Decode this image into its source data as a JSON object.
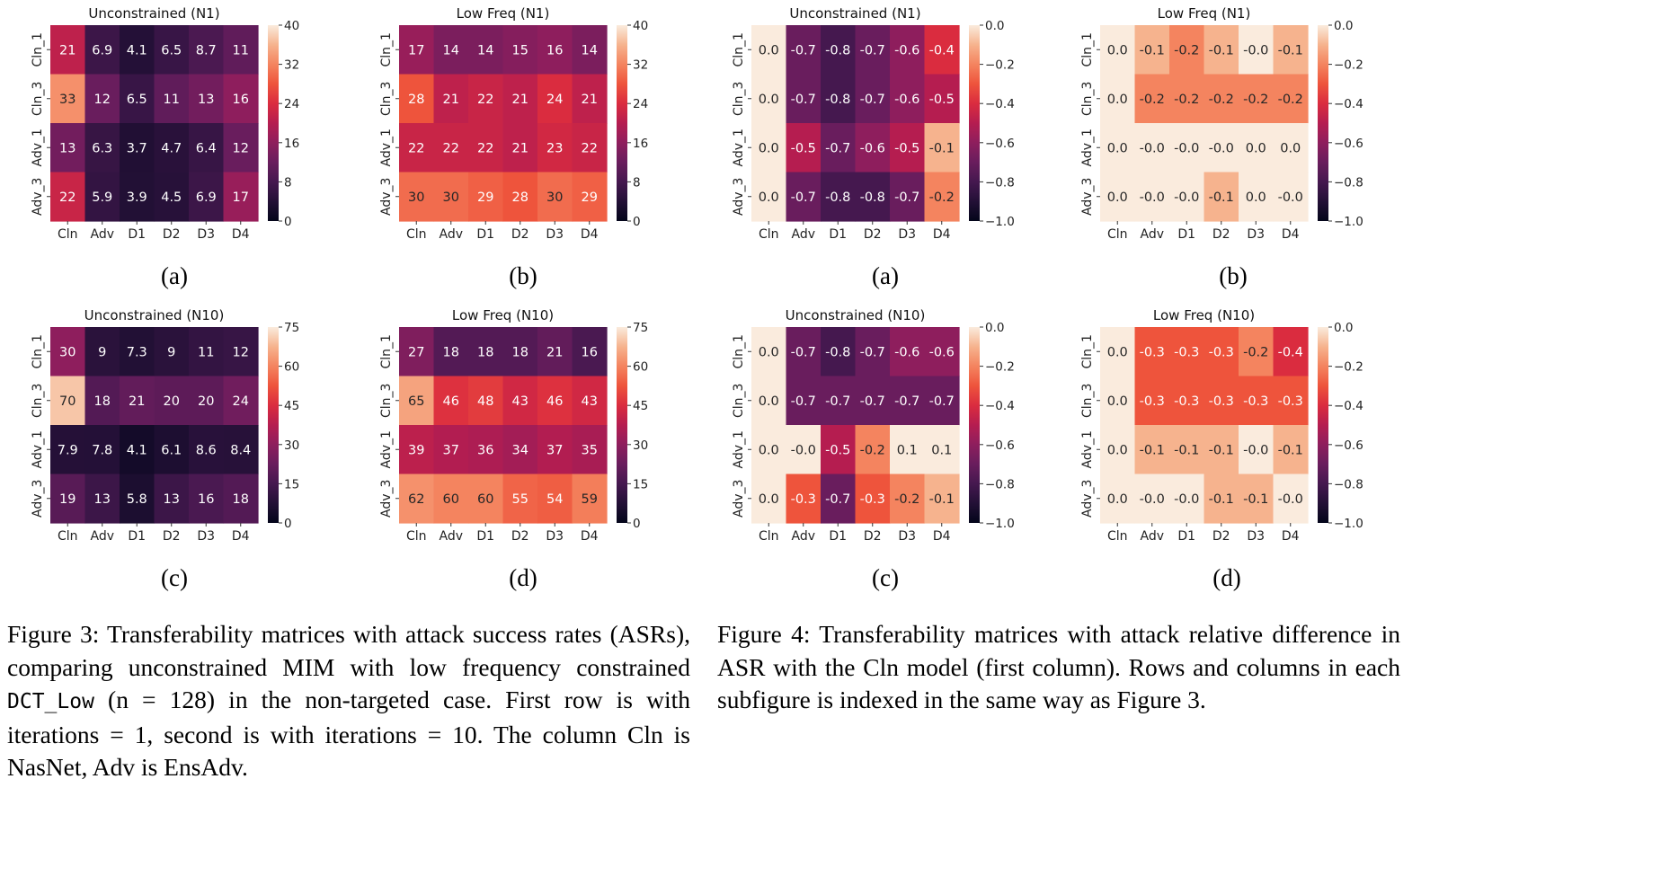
{
  "chart_data": [
    {
      "type": "heatmap",
      "title": "Unconstrained (N1)",
      "xlabels": [
        "Cln",
        "Adv",
        "D1",
        "D2",
        "D3",
        "D4"
      ],
      "ylabels": [
        "Cln_1",
        "Cln_3",
        "Adv_1",
        "Adv_3"
      ],
      "values": [
        [
          21,
          6.9,
          4.1,
          6.5,
          8.7,
          11
        ],
        [
          33,
          12,
          6.5,
          11,
          13,
          16
        ],
        [
          13,
          6.3,
          3.7,
          4.7,
          6.4,
          12
        ],
        [
          22,
          5.9,
          3.9,
          4.5,
          6.9,
          17
        ]
      ],
      "vmin": 0,
      "vmax": 40,
      "colorbar_ticks": [
        "0",
        "8",
        "16",
        "24",
        "32",
        "40"
      ],
      "colormap": "rocket",
      "sublabel": "(a)"
    },
    {
      "type": "heatmap",
      "title": "Low Freq (N1)",
      "xlabels": [
        "Cln",
        "Adv",
        "D1",
        "D2",
        "D3",
        "D4"
      ],
      "ylabels": [
        "Cln_1",
        "Cln_3",
        "Adv_1",
        "Adv_3"
      ],
      "values": [
        [
          17,
          14,
          14,
          15,
          16,
          14
        ],
        [
          28,
          21,
          22,
          21,
          24,
          21
        ],
        [
          22,
          22,
          22,
          21,
          23,
          22
        ],
        [
          30,
          30,
          29,
          28,
          30,
          29
        ]
      ],
      "vmin": 0,
      "vmax": 40,
      "colorbar_ticks": [
        "0",
        "8",
        "16",
        "24",
        "32",
        "40"
      ],
      "colormap": "rocket",
      "sublabel": "(b)"
    },
    {
      "type": "heatmap",
      "title": "Unconstrained (N1)",
      "xlabels": [
        "Cln",
        "Adv",
        "D1",
        "D2",
        "D3",
        "D4"
      ],
      "ylabels": [
        "Cln_1",
        "Cln_3",
        "Adv_1",
        "Adv_3"
      ],
      "values": [
        [
          0.0,
          -0.7,
          -0.8,
          -0.7,
          -0.6,
          -0.4
        ],
        [
          0.0,
          -0.7,
          -0.8,
          -0.7,
          -0.6,
          -0.5
        ],
        [
          0.0,
          -0.5,
          -0.7,
          -0.6,
          -0.5,
          -0.1
        ],
        [
          0.0,
          -0.7,
          -0.8,
          -0.8,
          -0.7,
          -0.2
        ]
      ],
      "display": [
        [
          "0.0",
          "-0.7",
          "-0.8",
          "-0.7",
          "-0.6",
          "-0.4"
        ],
        [
          "0.0",
          "-0.7",
          "-0.8",
          "-0.7",
          "-0.6",
          "-0.5"
        ],
        [
          "0.0",
          "-0.5",
          "-0.7",
          "-0.6",
          "-0.5",
          "-0.1"
        ],
        [
          "0.0",
          "-0.7",
          "-0.8",
          "-0.8",
          "-0.7",
          "-0.2"
        ]
      ],
      "vmin": -1.0,
      "vmax": 0.0,
      "colorbar_ticks": [
        "−1.0",
        "−0.8",
        "−0.6",
        "−0.4",
        "−0.2",
        "0.0"
      ],
      "colormap": "rocket",
      "sublabel": "(a)"
    },
    {
      "type": "heatmap",
      "title": "Low Freq (N1)",
      "xlabels": [
        "Cln",
        "Adv",
        "D1",
        "D2",
        "D3",
        "D4"
      ],
      "ylabels": [
        "Cln_1",
        "Cln_3",
        "Adv_1",
        "Adv_3"
      ],
      "values": [
        [
          0.0,
          -0.1,
          -0.2,
          -0.1,
          -0.0,
          -0.1
        ],
        [
          0.0,
          -0.2,
          -0.2,
          -0.2,
          -0.2,
          -0.2
        ],
        [
          0.0,
          -0.0,
          -0.0,
          -0.0,
          0.0,
          0.0
        ],
        [
          0.0,
          -0.0,
          -0.0,
          -0.1,
          0.0,
          -0.0
        ]
      ],
      "display": [
        [
          "0.0",
          "-0.1",
          "-0.2",
          "-0.1",
          "-0.0",
          "-0.1"
        ],
        [
          "0.0",
          "-0.2",
          "-0.2",
          "-0.2",
          "-0.2",
          "-0.2"
        ],
        [
          "0.0",
          "-0.0",
          "-0.0",
          "-0.0",
          "0.0",
          "0.0"
        ],
        [
          "0.0",
          "-0.0",
          "-0.0",
          "-0.1",
          "0.0",
          "-0.0"
        ]
      ],
      "vmin": -1.0,
      "vmax": 0.0,
      "colorbar_ticks": [
        "−1.0",
        "−0.8",
        "−0.6",
        "−0.4",
        "−0.2",
        "0.0"
      ],
      "colormap": "rocket",
      "sublabel": "(b)"
    },
    {
      "type": "heatmap",
      "title": "Unconstrained (N10)",
      "xlabels": [
        "Cln",
        "Adv",
        "D1",
        "D2",
        "D3",
        "D4"
      ],
      "ylabels": [
        "Cln_1",
        "Cln_3",
        "Adv_1",
        "Adv_3"
      ],
      "values": [
        [
          30,
          9,
          7.3,
          9,
          11,
          12
        ],
        [
          70,
          18,
          21,
          20,
          20,
          24
        ],
        [
          7.9,
          7.8,
          4.1,
          6.1,
          8.6,
          8.4
        ],
        [
          19,
          13,
          5.8,
          13,
          16,
          18
        ]
      ],
      "vmin": 0,
      "vmax": 75,
      "colorbar_ticks": [
        "0",
        "15",
        "30",
        "45",
        "60",
        "75"
      ],
      "colormap": "rocket",
      "sublabel": "(c)"
    },
    {
      "type": "heatmap",
      "title": "Low Freq (N10)",
      "xlabels": [
        "Cln",
        "Adv",
        "D1",
        "D2",
        "D3",
        "D4"
      ],
      "ylabels": [
        "Cln_1",
        "Cln_3",
        "Adv_1",
        "Adv_3"
      ],
      "values": [
        [
          27,
          18,
          18,
          18,
          21,
          16
        ],
        [
          65,
          46,
          48,
          43,
          46,
          43
        ],
        [
          39,
          37,
          36,
          34,
          37,
          35
        ],
        [
          62,
          60,
          60,
          55,
          54,
          59
        ]
      ],
      "vmin": 0,
      "vmax": 75,
      "colorbar_ticks": [
        "0",
        "15",
        "30",
        "45",
        "60",
        "75"
      ],
      "colormap": "rocket",
      "sublabel": "(d)"
    },
    {
      "type": "heatmap",
      "title": "Unconstrained (N10)",
      "xlabels": [
        "Cln",
        "Adv",
        "D1",
        "D2",
        "D3",
        "D4"
      ],
      "ylabels": [
        "Cln_1",
        "Cln_3",
        "Adv_1",
        "Adv_3"
      ],
      "values": [
        [
          0.0,
          -0.7,
          -0.8,
          -0.7,
          -0.6,
          -0.6
        ],
        [
          0.0,
          -0.7,
          -0.7,
          -0.7,
          -0.7,
          -0.7
        ],
        [
          0.0,
          -0.0,
          -0.5,
          -0.2,
          0.1,
          0.1
        ],
        [
          0.0,
          -0.3,
          -0.7,
          -0.3,
          -0.2,
          -0.1
        ]
      ],
      "display": [
        [
          "0.0",
          "-0.7",
          "-0.8",
          "-0.7",
          "-0.6",
          "-0.6"
        ],
        [
          "0.0",
          "-0.7",
          "-0.7",
          "-0.7",
          "-0.7",
          "-0.7"
        ],
        [
          "0.0",
          "-0.0",
          "-0.5",
          "-0.2",
          "0.1",
          "0.1"
        ],
        [
          "0.0",
          "-0.3",
          "-0.7",
          "-0.3",
          "-0.2",
          "-0.1"
        ]
      ],
      "vmin": -1.0,
      "vmax": 0.0,
      "colorbar_ticks": [
        "−1.0",
        "−0.8",
        "−0.6",
        "−0.4",
        "−0.2",
        "0.0"
      ],
      "colormap": "rocket",
      "sublabel": "(c)"
    },
    {
      "type": "heatmap",
      "title": "Low Freq (N10)",
      "xlabels": [
        "Cln",
        "Adv",
        "D1",
        "D2",
        "D3",
        "D4"
      ],
      "ylabels": [
        "Cln_1",
        "Cln_3",
        "Adv_1",
        "Adv_3"
      ],
      "values": [
        [
          0.0,
          -0.3,
          -0.3,
          -0.3,
          -0.2,
          -0.4
        ],
        [
          0.0,
          -0.3,
          -0.3,
          -0.3,
          -0.3,
          -0.3
        ],
        [
          0.0,
          -0.1,
          -0.1,
          -0.1,
          -0.0,
          -0.1
        ],
        [
          0.0,
          -0.0,
          -0.0,
          -0.1,
          -0.1,
          -0.0
        ]
      ],
      "display": [
        [
          "0.0",
          "-0.3",
          "-0.3",
          "-0.3",
          "-0.2",
          "-0.4"
        ],
        [
          "0.0",
          "-0.3",
          "-0.3",
          "-0.3",
          "-0.3",
          "-0.3"
        ],
        [
          "0.0",
          "-0.1",
          "-0.1",
          "-0.1",
          "-0.0",
          "-0.1"
        ],
        [
          "0.0",
          "-0.0",
          "-0.0",
          "-0.1",
          "-0.1",
          "-0.0"
        ]
      ],
      "vmin": -1.0,
      "vmax": 0.0,
      "colorbar_ticks": [
        "−1.0",
        "−0.8",
        "−0.6",
        "−0.4",
        "−0.2",
        "0.0"
      ],
      "colormap": "rocket",
      "sublabel": "(d)"
    }
  ],
  "captions": {
    "fig3": {
      "part1": "Figure 3: Transferability matrices with attack success rates (ASRs), comparing unconstrained MIM with low frequency constrained ",
      "code": "DCT_Low",
      "part2": " (n = 128) in the non-targeted case. First row is with iterations = 1, second is with iterations = 10. The column Cln is NasNet, Adv is EnsAdv."
    },
    "fig4": "Figure 4: Transferability matrices with attack relative difference in ASR with the Cln model (first column). Rows and columns in each subfigure is indexed in the same way as Figure 3."
  }
}
